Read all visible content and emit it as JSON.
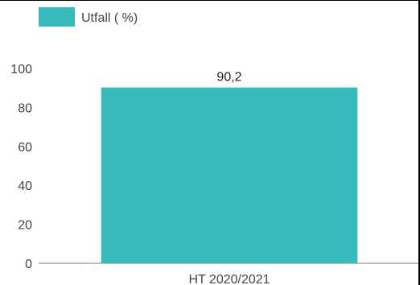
{
  "chart_data": {
    "type": "bar",
    "categories": [
      "HT 2020/2021"
    ],
    "series": [
      {
        "name": "Utfall ( %)",
        "values": [
          90.2
        ],
        "color": "#38bbbb"
      }
    ],
    "data_labels": [
      "90,2"
    ],
    "y_ticks": [
      "0",
      "20",
      "40",
      "60",
      "80",
      "100"
    ],
    "ylim": [
      0,
      100
    ],
    "grid": false,
    "legend_position": "top-left",
    "axis_color": "#999999",
    "text_color": "#444444"
  }
}
